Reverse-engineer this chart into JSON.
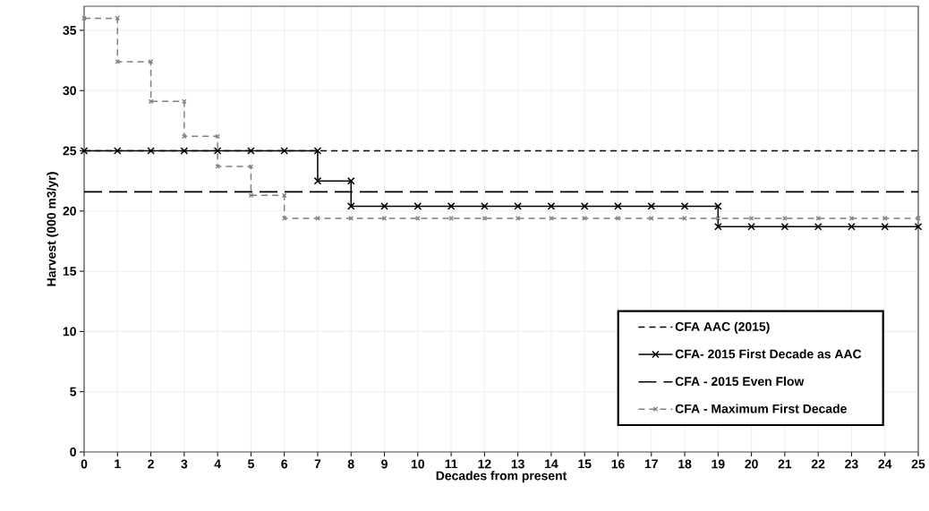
{
  "chart_data": {
    "type": "line",
    "xlabel": "Decades from present",
    "ylabel": "Harvest (000 m3/yr)",
    "xlim": [
      0,
      25
    ],
    "xticks": [
      0,
      1,
      2,
      3,
      4,
      5,
      6,
      7,
      8,
      9,
      10,
      11,
      12,
      13,
      14,
      15,
      16,
      17,
      18,
      19,
      20,
      21,
      22,
      23,
      24,
      25
    ],
    "ylim": [
      0,
      37
    ],
    "yticks": [
      0,
      5,
      10,
      15,
      20,
      25,
      30,
      35
    ],
    "grid": true,
    "legend": "bottom right",
    "series": [
      {
        "name": "CFA AAC (2015)",
        "color": "#000000",
        "line_style": "dashed",
        "x": [
          0,
          25
        ],
        "values": [
          25,
          25
        ]
      },
      {
        "name": "CFA-  2015 First Decade as AAC",
        "color": "#000000",
        "line_style": "solid",
        "marker": "cross",
        "x": [
          0,
          1,
          2,
          3,
          4,
          5,
          6,
          7,
          7,
          8,
          8,
          9,
          10,
          11,
          12,
          13,
          14,
          15,
          16,
          17,
          18,
          19,
          19,
          20,
          21,
          22,
          23,
          24,
          25
        ],
        "values": [
          25,
          25,
          25,
          25,
          25,
          25,
          25,
          25,
          22.5,
          22.5,
          20.4,
          20.4,
          20.4,
          20.4,
          20.4,
          20.4,
          20.4,
          20.4,
          20.4,
          20.4,
          20.4,
          20.4,
          18.7,
          18.7,
          18.7,
          18.7,
          18.7,
          18.7,
          18.7
        ]
      },
      {
        "name": "CFA - 2015 Even Flow",
        "color": "#000000",
        "line_style": "dashed",
        "marker": "none",
        "x": [
          0,
          25
        ],
        "values": [
          21.6,
          21.6
        ]
      },
      {
        "name": "CFA - Maximum First Decade",
        "color": "#808080",
        "line_style": "dashed",
        "marker": "cross",
        "x": [
          0,
          1,
          1,
          2,
          2,
          3,
          3,
          4,
          4,
          5,
          5,
          6,
          6,
          7,
          8,
          9,
          10,
          11,
          12,
          13,
          14,
          15,
          16,
          17,
          18,
          19,
          20,
          21,
          22,
          23,
          24,
          25
        ],
        "values": [
          36,
          36,
          32.4,
          32.4,
          29.1,
          29.1,
          26.2,
          26.2,
          23.7,
          23.7,
          21.3,
          21.3,
          19.4,
          19.4,
          19.4,
          19.4,
          19.4,
          19.4,
          19.4,
          19.4,
          19.4,
          19.4,
          19.4,
          19.4,
          19.4,
          19.4,
          19.4,
          19.4,
          19.4,
          19.4,
          19.4,
          19.4
        ]
      }
    ]
  }
}
